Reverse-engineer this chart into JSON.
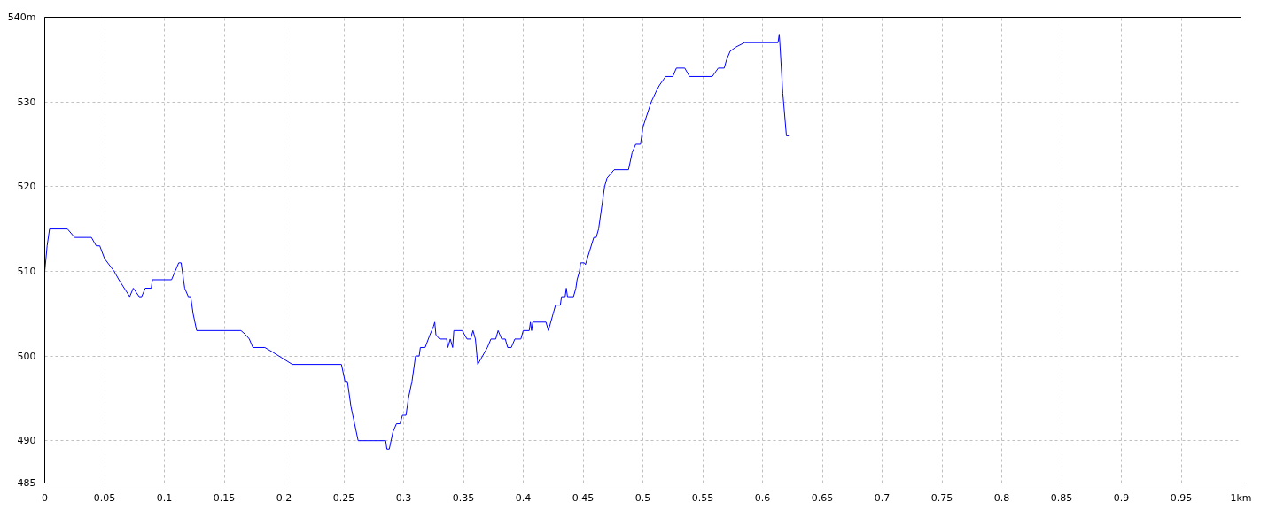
{
  "chart_data": {
    "type": "line",
    "xlim": [
      0,
      1
    ],
    "ylim": [
      485,
      540
    ],
    "xticks": [
      0,
      0.05,
      0.1,
      0.15,
      0.2,
      0.25,
      0.3,
      0.35,
      0.4,
      0.45,
      0.5,
      0.55,
      0.6,
      0.65,
      0.7,
      0.75,
      0.8,
      0.85,
      0.9,
      0.95,
      {
        "value": 1,
        "label": "1km"
      }
    ],
    "yticks": [
      485,
      490,
      500,
      510,
      520,
      530,
      {
        "value": 540,
        "label": "540m"
      }
    ],
    "grid": true,
    "marker": "none",
    "line_style": "solid",
    "series": [
      {
        "color": "#0000ff",
        "x": [
          0,
          0.002,
          0.004,
          0.019,
          0.025,
          0.039,
          0.043,
          0.046,
          0.05,
          0.058,
          0.062,
          0.071,
          0.074,
          0.079,
          0.081,
          0.084,
          0.089,
          0.09,
          0.106,
          0.112,
          0.114,
          0.117,
          0.12,
          0.122,
          0.124,
          0.127,
          0.164,
          0.168,
          0.171,
          0.174,
          0.184,
          0.19,
          0.207,
          0.248,
          0.251,
          0.253,
          0.256,
          0.259,
          0.262,
          0.285,
          0.286,
          0.288,
          0.291,
          0.294,
          0.297,
          0.299,
          0.302,
          0.304,
          0.307,
          0.31,
          0.313,
          0.314,
          0.318,
          0.322,
          0.325,
          0.326,
          0.327,
          0.33,
          0.336,
          0.337,
          0.339,
          0.341,
          0.342,
          0.349,
          0.353,
          0.356,
          0.358,
          0.36,
          0.362,
          0.366,
          0.37,
          0.373,
          0.377,
          0.379,
          0.382,
          0.385,
          0.387,
          0.39,
          0.393,
          0.398,
          0.4,
          0.405,
          0.406,
          0.407,
          0.408,
          0.419,
          0.421,
          0.425,
          0.427,
          0.431,
          0.432,
          0.435,
          0.436,
          0.437,
          0.438,
          0.442,
          0.444,
          0.445,
          0.447,
          0.448,
          0.451,
          0.452,
          0.459,
          0.461,
          0.463,
          0.468,
          0.47,
          0.473,
          0.476,
          0.488,
          0.491,
          0.494,
          0.498,
          0.5,
          0.507,
          0.512,
          0.514,
          0.519,
          0.525,
          0.528,
          0.535,
          0.539,
          0.558,
          0.563,
          0.568,
          0.57,
          0.573,
          0.578,
          0.585,
          0.613,
          0.614,
          0.6145,
          0.617,
          0.62,
          0.622
        ],
        "values": [
          510,
          513,
          515,
          515,
          514,
          514,
          513,
          513,
          511.5,
          510,
          509,
          507,
          508,
          507,
          507,
          508,
          508,
          509,
          509,
          511,
          511,
          508,
          507,
          507,
          505,
          503,
          503,
          502.5,
          502,
          501,
          501,
          500.5,
          499,
          499,
          497,
          497,
          494,
          492,
          490,
          490,
          489,
          489,
          491,
          492,
          492,
          493,
          493,
          495,
          497,
          500,
          500,
          501,
          501,
          502.5,
          503.5,
          504,
          502.5,
          502,
          502,
          501,
          502,
          501,
          503,
          503,
          502,
          502,
          503,
          502,
          499,
          500,
          501,
          502,
          502,
          503,
          502,
          502,
          501,
          501,
          502,
          502,
          503,
          503,
          504,
          503,
          504,
          504,
          503,
          505,
          506,
          506,
          507,
          507,
          508,
          507,
          507,
          507,
          508,
          509,
          510,
          511,
          511,
          510.8,
          514,
          514,
          515,
          520,
          521,
          521.5,
          522,
          522,
          524,
          525,
          525,
          527,
          530,
          531.5,
          532,
          533,
          533,
          534,
          534,
          533,
          533,
          534,
          534,
          535,
          536,
          536.5,
          537,
          537,
          538,
          537,
          531,
          526,
          526
        ]
      }
    ]
  }
}
